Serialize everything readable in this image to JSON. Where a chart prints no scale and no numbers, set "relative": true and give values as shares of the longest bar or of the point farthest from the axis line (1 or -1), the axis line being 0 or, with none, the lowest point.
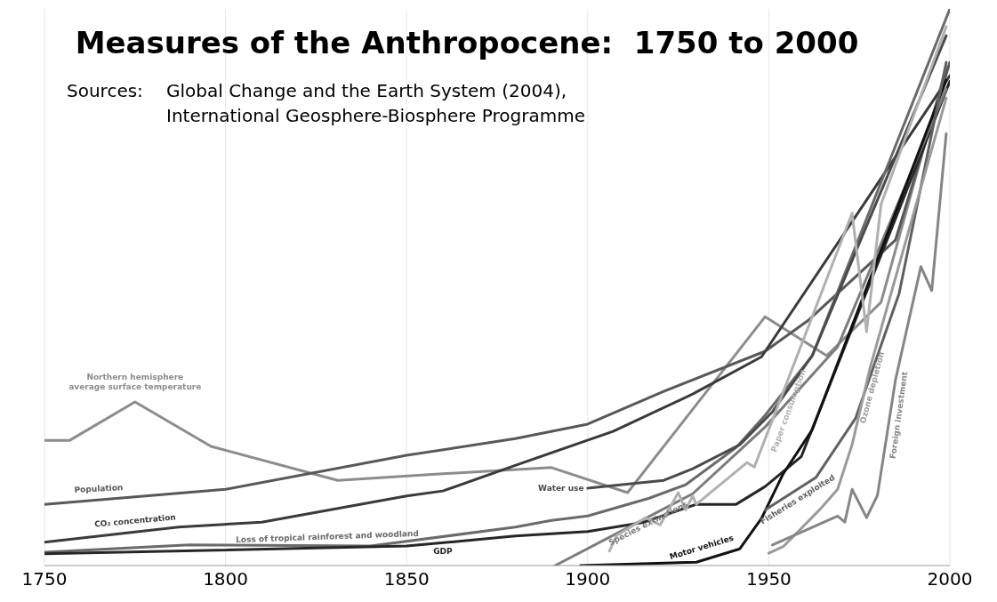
{
  "chart_data": {
    "type": "line",
    "title": "Measures of the Anthropocene:  1750 to 2000",
    "annotations": [
      "Sources:",
      "Global Change and the Earth System (2004),",
      "International Geosphere-Biosphere Programme"
    ],
    "relative": true,
    "xlim": [
      1750,
      2000
    ],
    "xticks": [
      1750,
      1800,
      1850,
      1900,
      1950,
      2000
    ],
    "grid": "x",
    "marker": "none",
    "line_style": "solid",
    "series": [
      {
        "name": "Northern hemisphere average surface temperature",
        "color": "#8c8c8c",
        "x": [
          1750,
          1757,
          1775,
          1796,
          1831,
          1860,
          1890,
          1911,
          1949,
          1966,
          1981,
          1999
        ],
        "values": [
          0.225,
          0.225,
          0.294,
          0.214,
          0.153,
          0.165,
          0.176,
          0.131,
          0.447,
          0.377,
          0.473,
          0.896
        ]
      },
      {
        "name": "Population",
        "color": "#585858",
        "x": [
          1750,
          1800,
          1850,
          1880,
          1900,
          1921,
          1949,
          1961,
          1985,
          2000
        ],
        "values": [
          0.11,
          0.137,
          0.198,
          0.228,
          0.254,
          0.313,
          0.385,
          0.441,
          0.585,
          0.904
        ]
      },
      {
        "name": "CO₂ concentration",
        "color": "#3a3a3a",
        "x": [
          1750,
          1787,
          1810,
          1850,
          1860,
          1880,
          1907,
          1929,
          1948,
          2000
        ],
        "values": [
          0.042,
          0.069,
          0.078,
          0.125,
          0.134,
          0.18,
          0.241,
          0.308,
          0.375,
          0.88
        ]
      },
      {
        "name": "Loss of tropical rainforest and woodland",
        "color": "#6a6a6a",
        "x": [
          1750,
          1790,
          1840,
          1880,
          1890,
          1900,
          1917,
          1927,
          1941,
          1949,
          1962,
          2000
        ],
        "values": [
          0.024,
          0.037,
          0.035,
          0.069,
          0.081,
          0.089,
          0.121,
          0.145,
          0.212,
          0.27,
          0.377,
          1.0
        ]
      },
      {
        "name": "GDP",
        "color": "#262626",
        "x": [
          1750,
          1850,
          1880,
          1900,
          1915,
          1930,
          1941,
          1949,
          1959,
          2000
        ],
        "values": [
          0.021,
          0.035,
          0.053,
          0.061,
          0.077,
          0.11,
          0.11,
          0.142,
          0.196,
          0.87
        ]
      },
      {
        "name": "Water use",
        "color": "#4a4a4a",
        "x": [
          1900,
          1921,
          1929,
          1942,
          1951,
          1962,
          1999
        ],
        "values": [
          0.139,
          0.153,
          0.174,
          0.217,
          0.276,
          0.377,
          0.952
        ]
      },
      {
        "name": "Species extinctions",
        "color": "#7c7c7c",
        "x": [
          1891,
          1929,
          1949,
          1969,
          1999
        ],
        "values": [
          0,
          0.129,
          0.249,
          0.393,
          0.856
        ]
      },
      {
        "name": "Motor vehicles",
        "color": "#111111",
        "x": [
          1898,
          1930,
          1942,
          1948,
          1954,
          1962,
          1999
        ],
        "values": [
          0,
          0.006,
          0.03,
          0.085,
          0.165,
          0.244,
          0.872
        ]
      },
      {
        "name": "Paper consumption",
        "color": "#b0b0b0",
        "x": [
          1906,
          1908,
          1916,
          1920,
          1925,
          1927,
          1929,
          1930,
          1944,
          1946,
          1973,
          1977,
          1981,
          1999
        ],
        "values": [
          0.026,
          0.054,
          0.086,
          0.073,
          0.131,
          0.1,
          0.125,
          0.11,
          0.185,
          0.177,
          0.633,
          0.42,
          0.649,
          0.968
        ]
      },
      {
        "name": "Fisheries exploited",
        "color": "#606060",
        "x": [
          1949,
          1963,
          1974,
          1986,
          1999
        ],
        "values": [
          0.1,
          0.158,
          0.265,
          0.489,
          0.904
        ]
      },
      {
        "name": "Ozone depletion",
        "color": "#9a9a9a",
        "x": [
          1950,
          1954,
          1964,
          1969,
          1973,
          1978,
          1999
        ],
        "values": [
          0.022,
          0.034,
          0.1,
          0.137,
          0.217,
          0.356,
          0.84
        ]
      },
      {
        "name": "Foreign investment",
        "color": "#858585",
        "x": [
          1951,
          1969,
          1971,
          1973,
          1977,
          1980,
          1985,
          1992,
          1995,
          1999
        ],
        "values": [
          0.037,
          0.089,
          0.078,
          0.137,
          0.086,
          0.126,
          0.334,
          0.537,
          0.494,
          0.776
        ]
      }
    ]
  }
}
